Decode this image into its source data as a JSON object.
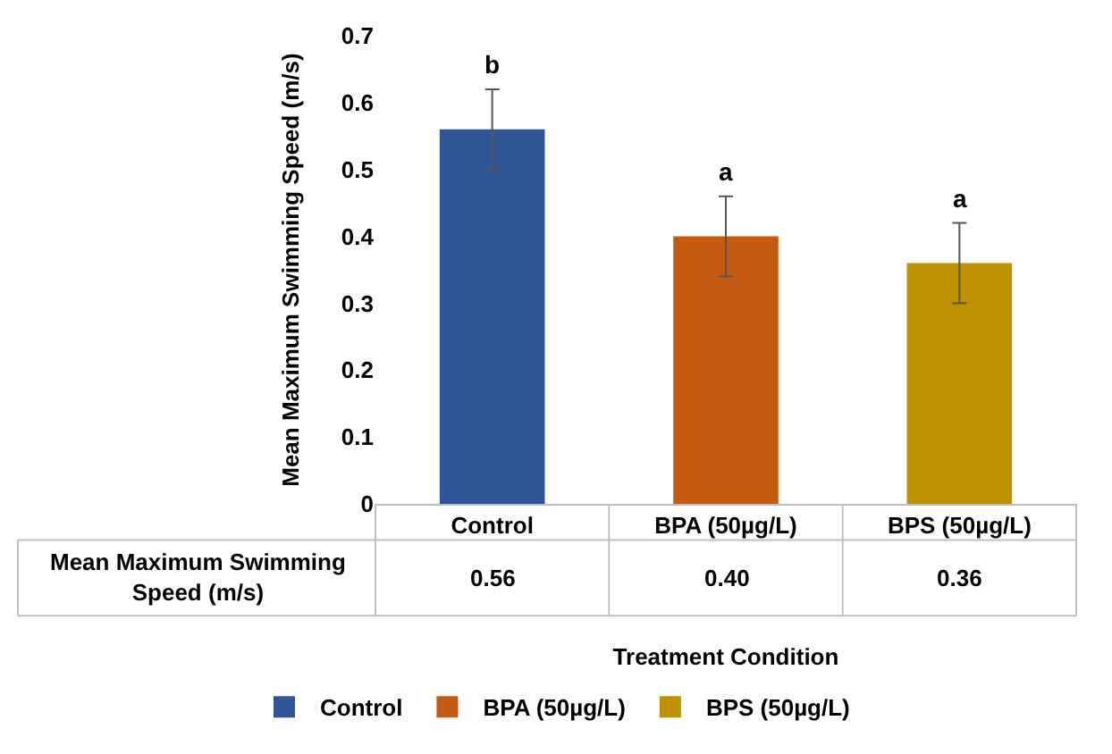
{
  "chart_data": {
    "type": "bar",
    "ylabel": "Mean Maximum Swimming Speed (m/s)",
    "xlabel": "Treatment Condition",
    "categories": [
      "Control",
      "BPA (50µg/L)",
      "BPS (50µg/L)"
    ],
    "series": [
      {
        "name": "Control",
        "color": "#2f5597",
        "values": [
          0.56,
          null,
          null
        ],
        "errors": [
          0.06,
          null,
          null
        ],
        "value_labels": [
          "0.56",
          null,
          null
        ]
      },
      {
        "name": "BPA (50µg/L)",
        "color": "#c55a11",
        "values": [
          null,
          0.4,
          null
        ],
        "errors": [
          null,
          0.06,
          null
        ],
        "value_labels": [
          null,
          "0.40",
          null
        ]
      },
      {
        "name": "BPS (50µg/L)",
        "color": "#bf9000",
        "values": [
          null,
          null,
          0.36
        ],
        "errors": [
          null,
          null,
          0.06
        ],
        "value_labels": [
          null,
          null,
          "0.36"
        ]
      }
    ],
    "ylim": [
      0,
      0.7
    ],
    "yticks": [
      0,
      0.1,
      0.2,
      0.3,
      0.4,
      0.5,
      0.6,
      0.7
    ],
    "grid": false,
    "legend": "bottom",
    "annotations": [
      "Mean Maximum Swimming Speed (m/s)",
      {
        "text": "b",
        "x": "Control",
        "y": 0.62
      },
      {
        "text": "a",
        "x": "BPA (50µg/L)",
        "y": 0.46
      },
      {
        "text": "a",
        "x": "BPS (50µg/L)",
        "y": 0.42
      }
    ]
  }
}
